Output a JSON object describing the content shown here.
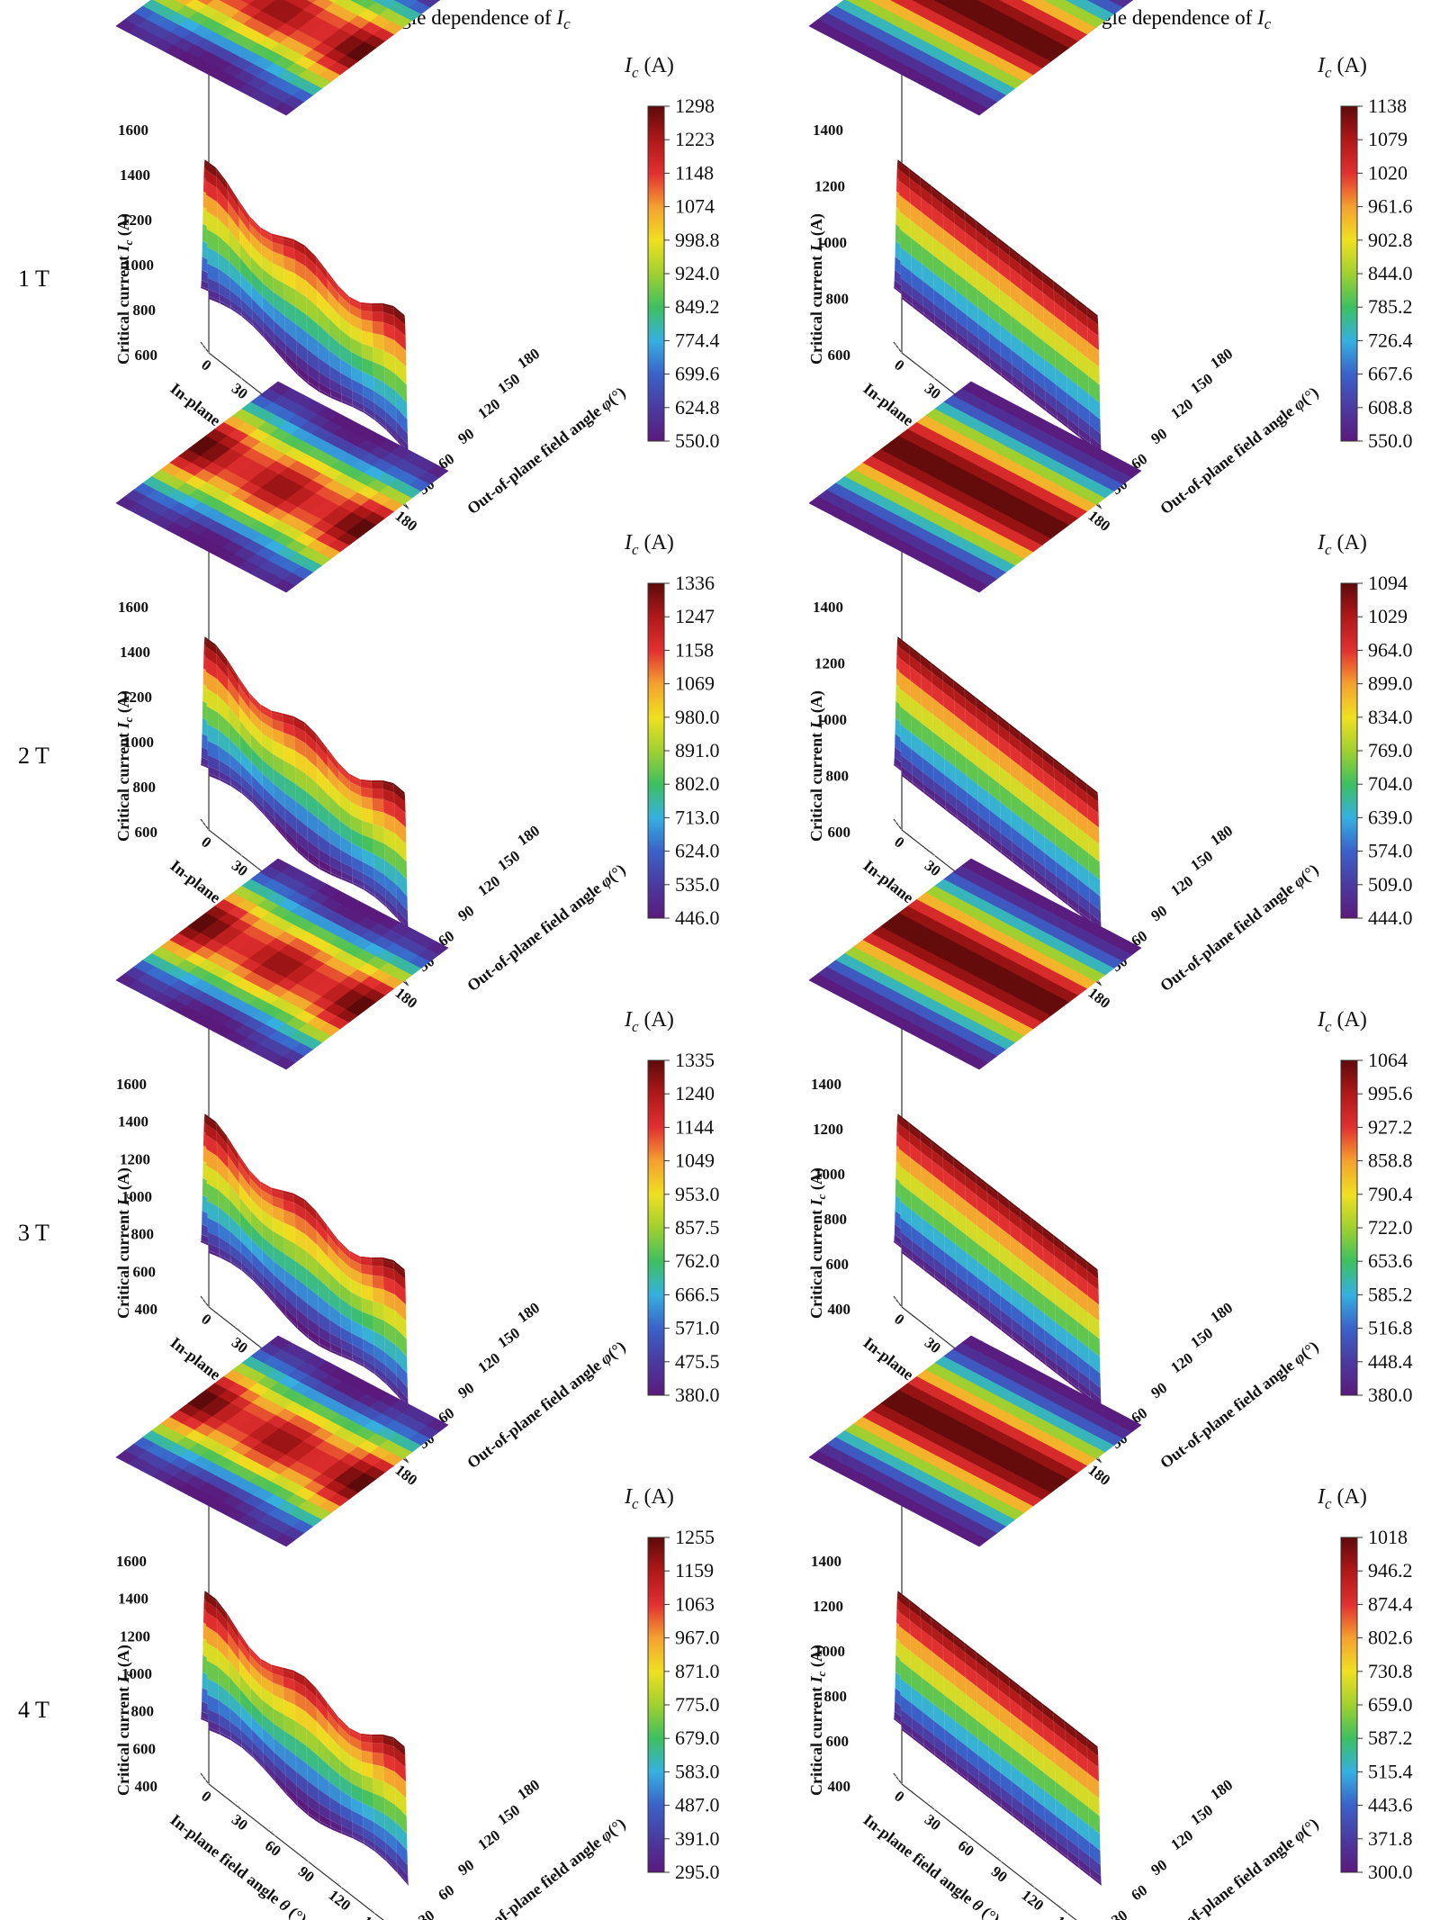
{
  "figure": {
    "col_titles": [
      {
        "text": "Consider the in-plane field angle dependence of ",
        "var": "I",
        "sub": "c"
      },
      {
        "text": "Disregard the in-plane field angle dependence of ",
        "var": "I",
        "sub": "c"
      }
    ],
    "row_labels": [
      "1 T",
      "2 T",
      "3 T",
      "4 T"
    ],
    "colorbar_title": {
      "var": "I",
      "sub": "c",
      "unit": " (A)"
    },
    "axis_labels": {
      "x": {
        "text": "In-plane field angle ",
        "var": "θ",
        "unit": " (°)"
      },
      "y": {
        "text": "Out-of-plane field angle ",
        "var": "φ",
        "unit": "(°)"
      },
      "z": {
        "text": "Critical current ",
        "var": "I",
        "sub": "c",
        "unit": " (A)"
      }
    },
    "theta_ticks": [
      "0",
      "30",
      "60",
      "90",
      "120",
      "150",
      "180"
    ],
    "phi_ticks": [
      "30",
      "60",
      "90",
      "120",
      "150",
      "180"
    ],
    "colormap": [
      "#5a1a7c",
      "#4b3aa0",
      "#3a62c8",
      "#36b0e0",
      "#3dc060",
      "#a0d030",
      "#f0e020",
      "#f4a030",
      "#e23030",
      "#b01818",
      "#5e0a0a"
    ]
  },
  "chart_data": [
    {
      "type": "surface3d",
      "row": "1 T",
      "column": "Consider",
      "zlim": [
        600,
        1600
      ],
      "z_ticks": [
        "600",
        "800",
        "1000",
        "1200",
        "1400",
        "1600"
      ],
      "colorbar": [
        "1298",
        "1223",
        "1148",
        "1074",
        "998.8",
        "924.0",
        "849.2",
        "774.4",
        "699.6",
        "624.8",
        "550.0"
      ],
      "surface": "varies"
    },
    {
      "type": "surface3d",
      "row": "1 T",
      "column": "Disregard",
      "zlim": [
        600,
        1400
      ],
      "z_ticks": [
        "600",
        "800",
        "1000",
        "1200",
        "1400"
      ],
      "colorbar": [
        "1138",
        "1079",
        "1020",
        "961.6",
        "902.8",
        "844.0",
        "785.2",
        "726.4",
        "667.6",
        "608.8",
        "550.0"
      ],
      "surface": "ridge"
    },
    {
      "type": "surface3d",
      "row": "2 T",
      "column": "Consider",
      "zlim": [
        600,
        1600
      ],
      "z_ticks": [
        "600",
        "800",
        "1000",
        "1200",
        "1400",
        "1600"
      ],
      "colorbar": [
        "1336",
        "1247",
        "1158",
        "1069",
        "980.0",
        "891.0",
        "802.0",
        "713.0",
        "624.0",
        "535.0",
        "446.0"
      ],
      "surface": "varies"
    },
    {
      "type": "surface3d",
      "row": "2 T",
      "column": "Disregard",
      "zlim": [
        600,
        1400
      ],
      "z_ticks": [
        "600",
        "800",
        "1000",
        "1200",
        "1400"
      ],
      "colorbar": [
        "1094",
        "1029",
        "964.0",
        "899.0",
        "834.0",
        "769.0",
        "704.0",
        "639.0",
        "574.0",
        "509.0",
        "444.0"
      ],
      "surface": "ridge"
    },
    {
      "type": "surface3d",
      "row": "3 T",
      "column": "Consider",
      "zlim": [
        400,
        1600
      ],
      "z_ticks": [
        "400",
        "600",
        "800",
        "1000",
        "1200",
        "1400",
        "1600"
      ],
      "colorbar": [
        "1335",
        "1240",
        "1144",
        "1049",
        "953.0",
        "857.5",
        "762.0",
        "666.5",
        "571.0",
        "475.5",
        "380.0"
      ],
      "surface": "varies"
    },
    {
      "type": "surface3d",
      "row": "3 T",
      "column": "Disregard",
      "zlim": [
        400,
        1400
      ],
      "z_ticks": [
        "400",
        "600",
        "800",
        "1000",
        "1200",
        "1400"
      ],
      "colorbar": [
        "1064",
        "995.6",
        "927.2",
        "858.8",
        "790.4",
        "722.0",
        "653.6",
        "585.2",
        "516.8",
        "448.4",
        "380.0"
      ],
      "surface": "ridge"
    },
    {
      "type": "surface3d",
      "row": "4 T",
      "column": "Consider",
      "zlim": [
        400,
        1600
      ],
      "z_ticks": [
        "400",
        "600",
        "800",
        "1000",
        "1200",
        "1400",
        "1600"
      ],
      "colorbar": [
        "1255",
        "1159",
        "1063",
        "967.0",
        "871.0",
        "775.0",
        "679.0",
        "583.0",
        "487.0",
        "391.0",
        "295.0"
      ],
      "surface": "varies"
    },
    {
      "type": "surface3d",
      "row": "4 T",
      "column": "Disregard",
      "zlim": [
        400,
        1400
      ],
      "z_ticks": [
        "400",
        "600",
        "800",
        "1000",
        "1200",
        "1400"
      ],
      "colorbar": [
        "1018",
        "946.2",
        "874.4",
        "802.6",
        "730.8",
        "659.0",
        "587.2",
        "515.4",
        "443.6",
        "371.8",
        "300.0"
      ],
      "surface": "ridge"
    }
  ]
}
